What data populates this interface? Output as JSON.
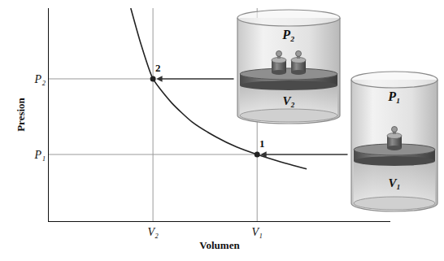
{
  "chart_data": {
    "type": "line",
    "x_label": "Volumen",
    "y_label": "Presion",
    "x": [
      2.4,
      2.7,
      3.05,
      3.6,
      4.2,
      4.9,
      5.5,
      6.1,
      6.8,
      7.55
    ],
    "values": [
      10,
      8.3,
      6.68,
      5.55,
      4.65,
      3.95,
      3.48,
      3.13,
      2.78,
      2.45
    ],
    "color": "#222222",
    "line_style": "solid",
    "xlim": [
      0,
      10
    ],
    "ylim": [
      0,
      10
    ],
    "xticks": [
      {
        "value": 3.05,
        "label": "V₂"
      },
      {
        "value": 6.1,
        "label": "V₁"
      }
    ],
    "yticks": [
      {
        "value": 3.13,
        "label": "P₁"
      },
      {
        "value": 6.68,
        "label": "P₂"
      }
    ],
    "grid": false,
    "annotations": [
      {
        "text": "2",
        "x": 3.05,
        "y": 6.68
      },
      {
        "text": "1",
        "x": 6.1,
        "y": 3.13
      }
    ]
  },
  "containers": [
    {
      "pressure": "P₂",
      "volume": "V₂",
      "weights": 2
    },
    {
      "pressure": "P₁",
      "volume": "V₁",
      "weights": 1
    }
  ]
}
